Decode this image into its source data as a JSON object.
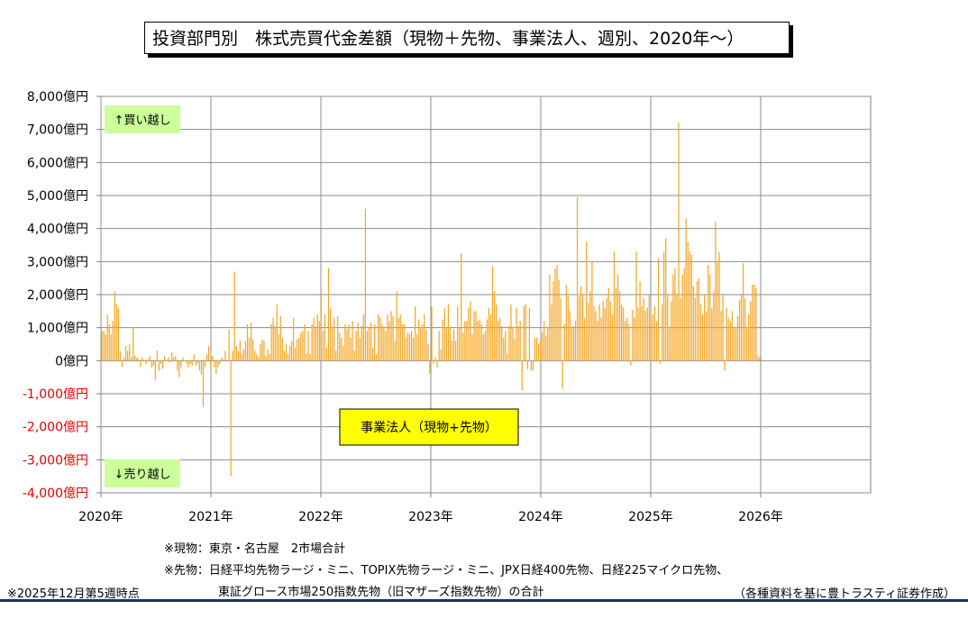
{
  "title": "投資部門別　株式売買代金差額（現物＋先物、事業法人、週別、2020年～）",
  "chart_data": {
    "type": "bar",
    "x_tick_labels": [
      "2020年",
      "2021年",
      "2022年",
      "2023年",
      "2024年",
      "2025年",
      "2026年"
    ],
    "y_tick_labels": [
      "8,000億円",
      "7,000億円",
      "6,000億円",
      "5,000億円",
      "4,000億円",
      "3,000億円",
      "2,000億円",
      "1,000億円",
      "0億円",
      "-1,000億円",
      "-2,000億円",
      "-3,000億円",
      "-4,000億円"
    ],
    "ylim": [
      -4000,
      8000
    ],
    "xlim": [
      2020,
      2026
    ],
    "unit": "億円",
    "grid": true,
    "bar_color": "#f5a623",
    "negative_tick_color": "#e00000",
    "buy_label": "↑買い越し",
    "sell_label": "↓売り越し",
    "series_label": "事業法人（現物+先物）",
    "values": [
      900,
      900,
      800,
      1400,
      1100,
      800,
      1200,
      2100,
      1700,
      1600,
      300,
      -200,
      100,
      450,
      300,
      500,
      100,
      1000,
      150,
      100,
      50,
      -200,
      100,
      0,
      -100,
      50,
      150,
      -200,
      -150,
      -600,
      300,
      -300,
      -100,
      -250,
      150,
      0,
      100,
      -50,
      250,
      100,
      150,
      -300,
      -500,
      -200,
      100,
      0,
      -100,
      -200,
      -100,
      -150,
      200,
      -150,
      -100,
      -300,
      -400,
      -1400,
      -200,
      200,
      450,
      -200,
      150,
      -200,
      -400,
      -200,
      -100,
      100,
      50,
      300,
      0,
      950,
      -3500,
      300,
      2700,
      450,
      300,
      600,
      200,
      350,
      600,
      1100,
      700,
      1150,
      650,
      300,
      200,
      100,
      500,
      650,
      600,
      150,
      350,
      200,
      1100,
      1300,
      1050,
      1700,
      800,
      1350,
      700,
      300,
      500,
      200,
      450,
      600,
      1300,
      400,
      650,
      700,
      850,
      900,
      1100,
      200,
      900,
      200,
      1100,
      1300,
      1000,
      1400,
      1200,
      2100,
      900,
      1400,
      400,
      2800,
      1600,
      1000,
      1300,
      300,
      1350,
      850,
      700,
      450,
      1100,
      950,
      1100,
      700,
      1200,
      300,
      900,
      1150,
      700,
      1050,
      1400,
      4600,
      900,
      1000,
      1150,
      400,
      1100,
      200,
      1400,
      1300,
      1100,
      1000,
      900,
      1400,
      1200,
      1500,
      1350,
      600,
      2100,
      1300,
      1400,
      1100,
      1100,
      700,
      850,
      800,
      900,
      700,
      1650,
      800,
      1250,
      1000,
      1100,
      1400,
      950,
      500,
      -400,
      1650,
      -100,
      100,
      -200,
      900,
      350,
      1250,
      1600,
      1000,
      1700,
      1000,
      600,
      950,
      600,
      1650,
      1000,
      3250,
      850,
      1200,
      1200,
      1600,
      1800,
      800,
      1500,
      1500,
      1200,
      1250,
      1100,
      800,
      900,
      1250,
      1600,
      1400,
      2850,
      2100,
      1700,
      1200,
      1300,
      1050,
      700,
      900,
      200,
      1050,
      1700,
      1000,
      650,
      1600,
      1050,
      1200,
      -900,
      1650,
      1700,
      -250,
      1600,
      -300,
      -300,
      700,
      700,
      500,
      600,
      850,
      1200,
      750,
      1000,
      2600,
      1700,
      2400,
      2800,
      2900,
      2450,
      1900,
      -850,
      1100,
      2300,
      2000,
      1500,
      1000,
      1050,
      1200,
      4950,
      1950,
      2250,
      2000,
      1300,
      3600,
      1750,
      2100,
      3000,
      1650,
      1500,
      1200,
      1700,
      1300,
      1800,
      1600,
      1900,
      2200,
      1800,
      1400,
      3300,
      2200,
      2600,
      2100,
      1700,
      1600,
      1200,
      1300,
      1100,
      -150,
      1550,
      1300,
      3300,
      1600,
      2400,
      1650,
      1900,
      1500,
      1600,
      2000,
      1250,
      1400,
      1650,
      1200,
      3100,
      -100,
      1700,
      3300,
      3700,
      2000,
      1000,
      1800,
      2600,
      2800,
      2000,
      7200,
      1900,
      2600,
      2800,
      4300,
      3600,
      3300,
      3200,
      2250,
      1900,
      2400,
      2500,
      1700,
      1400,
      2000,
      1500,
      2900,
      2600,
      1600,
      2100,
      4200,
      3000,
      3300,
      1500,
      2000,
      -300,
      1600,
      1300,
      1200,
      1500,
      1000,
      1000,
      1350,
      1850,
      2000,
      2950,
      1900,
      1000,
      1400,
      1800,
      2300,
      2300,
      2200,
      150,
      100
    ]
  },
  "notes": {
    "spot": "※現物：東京・名古屋　2市場合計",
    "futures_line1": "※先物：日経平均先物ラージ・ミニ、TOPIX先物ラージ・ミニ、JPX日経400先物、日経225マイクロ先物、",
    "futures_line2": "東証グロース市場250指数先物（旧マザーズ指数先物）の合計",
    "as_of": "※2025年12月第5週時点",
    "source": "（各種資料を基に豊トラスティ証券作成）"
  }
}
